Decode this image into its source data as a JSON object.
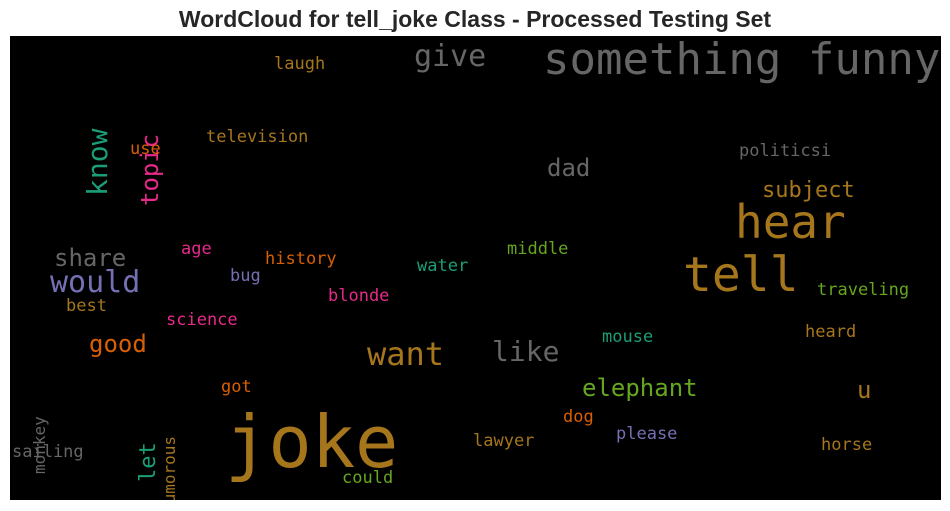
{
  "chart_data": {
    "type": "wordcloud",
    "title": "WordCloud for tell_joke Class - Processed Testing Set",
    "background": "#000000",
    "words": [
      {
        "text": "joke",
        "color": "#a6761d"
      },
      {
        "text": "something funny",
        "color": "#666666"
      },
      {
        "text": "hear",
        "color": "#a6761d"
      },
      {
        "text": "tell",
        "color": "#a6761d"
      },
      {
        "text": "want",
        "color": "#a6761d"
      },
      {
        "text": "like",
        "color": "#666666"
      },
      {
        "text": "would",
        "color": "#7570b3"
      },
      {
        "text": "give",
        "color": "#666666"
      },
      {
        "text": "know",
        "color": "#1b9e77"
      },
      {
        "text": "topic",
        "color": "#e7298a"
      },
      {
        "text": "elephant",
        "color": "#66a61e"
      },
      {
        "text": "subject",
        "color": "#a6761d"
      },
      {
        "text": "share",
        "color": "#666666"
      },
      {
        "text": "good",
        "color": "#d95f02"
      },
      {
        "text": "dad",
        "color": "#666666"
      },
      {
        "text": "u",
        "color": "#a6761d"
      },
      {
        "text": "let",
        "color": "#1b9e77"
      },
      {
        "text": "humorous",
        "color": "#a6761d"
      },
      {
        "text": "laugh",
        "color": "#a6761d"
      },
      {
        "text": "television",
        "color": "#a6761d"
      },
      {
        "text": "use",
        "color": "#d95f02"
      },
      {
        "text": "politicsi",
        "color": "#666666"
      },
      {
        "text": "age",
        "color": "#e7298a"
      },
      {
        "text": "history",
        "color": "#d95f02"
      },
      {
        "text": "water",
        "color": "#1b9e77"
      },
      {
        "text": "middle",
        "color": "#66a61e"
      },
      {
        "text": "bug",
        "color": "#7570b3"
      },
      {
        "text": "blonde",
        "color": "#e7298a"
      },
      {
        "text": "traveling",
        "color": "#66a61e"
      },
      {
        "text": "best",
        "color": "#a6761d"
      },
      {
        "text": "science",
        "color": "#e7298a"
      },
      {
        "text": "mouse",
        "color": "#1b9e77"
      },
      {
        "text": "heard",
        "color": "#a6761d"
      },
      {
        "text": "monkey",
        "color": "#666666"
      },
      {
        "text": "got",
        "color": "#d95f02"
      },
      {
        "text": "dog",
        "color": "#d95f02"
      },
      {
        "text": "please",
        "color": "#7570b3"
      },
      {
        "text": "lawyer",
        "color": "#a6761d"
      },
      {
        "text": "horse",
        "color": "#a6761d"
      },
      {
        "text": "sailing",
        "color": "#666666"
      },
      {
        "text": "could",
        "color": "#66a61e"
      }
    ]
  }
}
